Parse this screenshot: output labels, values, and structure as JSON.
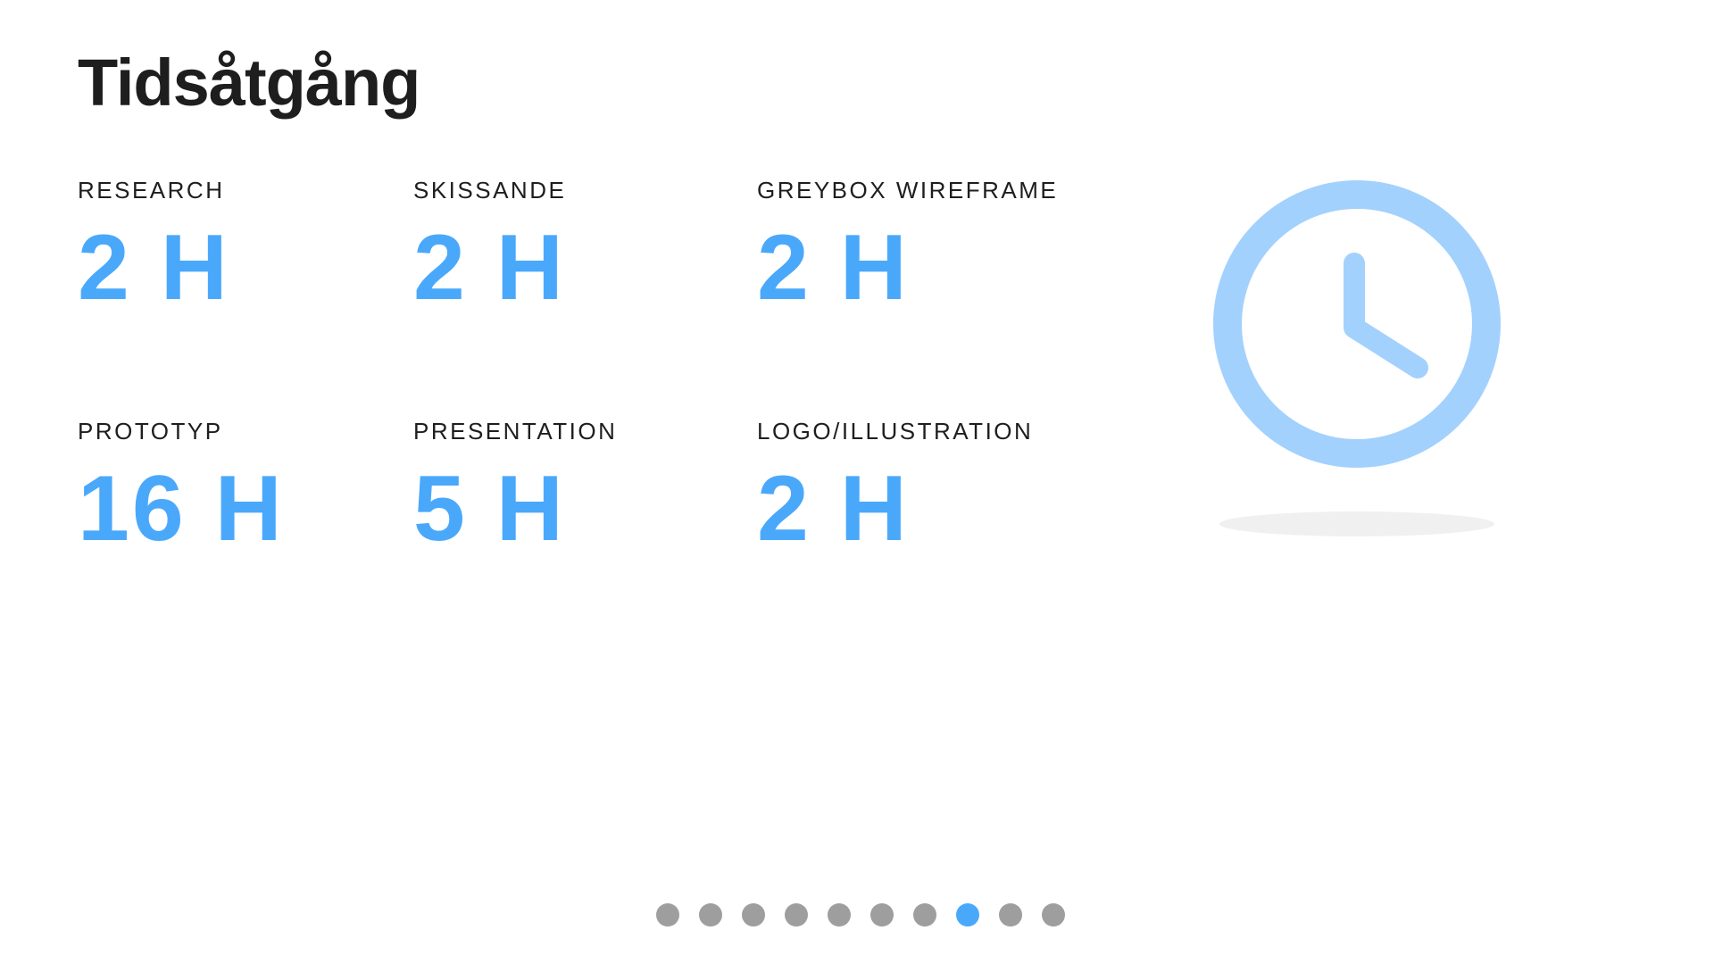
{
  "page": {
    "title": "Tidsåtgång"
  },
  "stats": [
    {
      "label": "RESEARCH",
      "value": "2 H"
    },
    {
      "label": "SKISSANDE",
      "value": "2 H"
    },
    {
      "label": "GREYBOX WIREFRAME",
      "value": "2 H"
    },
    {
      "label": "PROTOTYP",
      "value": "16 H"
    },
    {
      "label": "PRESENTATION",
      "value": "5 H"
    },
    {
      "label": "LOGO/ILLUSTRATION",
      "value": "2 H"
    }
  ],
  "illustration": {
    "icon": "clock-icon",
    "color": "#a3d1fd",
    "shadow_color": "#f0f0f0"
  },
  "pager": {
    "count": 10,
    "active_index": 7,
    "active_color": "#4aa8fb",
    "inactive_color": "#9e9e9e"
  },
  "colors": {
    "accent": "#4aa8fb",
    "text": "#1e1e1e",
    "background": "#ffffff"
  }
}
